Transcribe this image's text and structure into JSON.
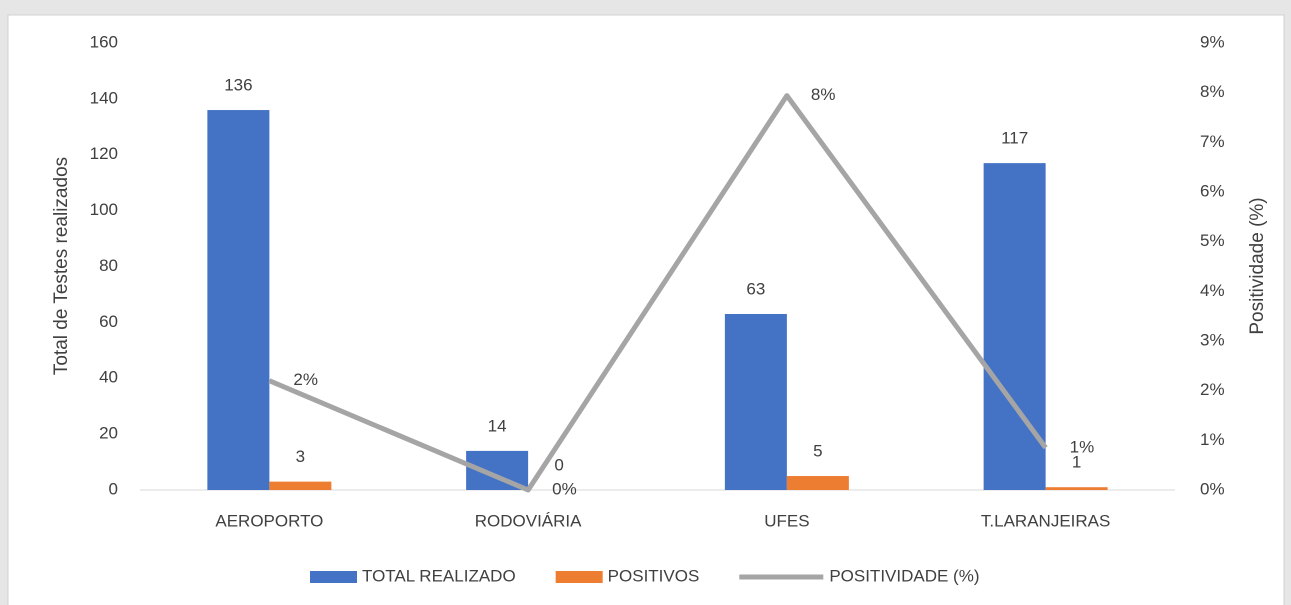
{
  "chart_data": {
    "type": "bar-line",
    "categories": [
      "AEROPORTO",
      "RODOVIÁRIA",
      "UFES",
      "T.LARANJEIRAS"
    ],
    "series": [
      {
        "name": "TOTAL REALIZADO",
        "type": "bar",
        "color": "#4472c4",
        "values": [
          136,
          14,
          63,
          117
        ]
      },
      {
        "name": "POSITIVOS",
        "type": "bar",
        "color": "#ed7d31",
        "values": [
          3,
          0,
          5,
          1
        ]
      },
      {
        "name": "POSITIVIDADE (%)",
        "type": "line",
        "axis": "y2",
        "color": "#a5a5a5",
        "values": [
          2.2,
          0,
          7.94,
          0.85
        ],
        "value_labels": [
          "2%",
          "0%",
          "8%",
          "1%"
        ]
      }
    ],
    "ylabel": "Total de Testes realizados",
    "y2label": "Positividade (%)",
    "ylim": [
      0,
      160
    ],
    "yticks": [
      0,
      20,
      40,
      60,
      80,
      100,
      120,
      140,
      160
    ],
    "y2lim": [
      0,
      9
    ],
    "y2ticks": [
      {
        "value": 0,
        "label": "0%"
      },
      {
        "value": 1,
        "label": "1%"
      },
      {
        "value": 2,
        "label": "2%"
      },
      {
        "value": 3,
        "label": "3%"
      },
      {
        "value": 4,
        "label": "4%"
      },
      {
        "value": 5,
        "label": "5%"
      },
      {
        "value": 6,
        "label": "6%"
      },
      {
        "value": 7,
        "label": "7%"
      },
      {
        "value": 8,
        "label": "8%"
      },
      {
        "value": 9,
        "label": "9%"
      }
    ],
    "grid": false,
    "legend": "bottom"
  }
}
